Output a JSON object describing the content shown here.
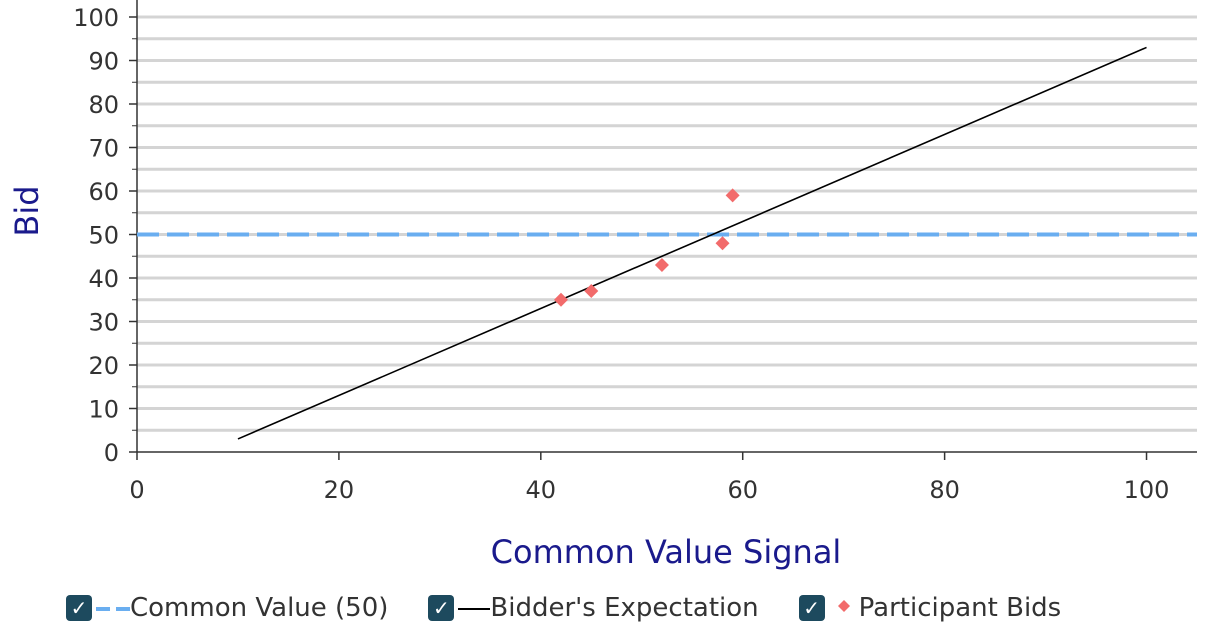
{
  "chart_data": {
    "type": "scatter",
    "xlabel": "Common Value Signal",
    "ylabel": "Bid",
    "xlim": [
      0,
      105
    ],
    "ylim": [
      0,
      100
    ],
    "x_ticks": [
      0,
      20,
      40,
      60,
      80,
      100
    ],
    "y_ticks": [
      0,
      10,
      20,
      30,
      40,
      50,
      60,
      70,
      80,
      90,
      100
    ],
    "grid": true,
    "legend_position": "bottom",
    "series": [
      {
        "name": "Common Value (50)",
        "kind": "dashed-line",
        "color": "#6aaef0",
        "points": [
          [
            0,
            50
          ],
          [
            105,
            50
          ]
        ]
      },
      {
        "name": "Bidder's Expectation",
        "kind": "line",
        "color": "#000000",
        "points": [
          [
            10,
            3
          ],
          [
            100,
            93
          ]
        ]
      },
      {
        "name": "Participant Bids",
        "kind": "diamond-markers",
        "color": "#f26b6b",
        "points": [
          [
            42,
            35
          ],
          [
            45,
            37
          ],
          [
            52,
            43
          ],
          [
            58,
            48
          ],
          [
            59,
            59
          ]
        ]
      }
    ]
  },
  "legend": {
    "check_glyph": "✓",
    "items": [
      {
        "label": "Common Value (50)",
        "checked": true
      },
      {
        "label": "Bidder's Expectation",
        "checked": true
      },
      {
        "label": "Participant Bids",
        "checked": true
      }
    ]
  }
}
